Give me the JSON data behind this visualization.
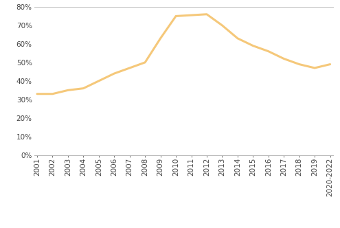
{
  "years": [
    "2001",
    "2002",
    "2003",
    "2004",
    "2005",
    "2006",
    "2007",
    "2008",
    "2009",
    "2010",
    "2011",
    "2012",
    "2013",
    "2014",
    "2015",
    "2016",
    "2017",
    "2018",
    "2019",
    "2020-2022"
  ],
  "values": [
    0.33,
    0.33,
    0.35,
    0.36,
    0.4,
    0.44,
    0.47,
    0.5,
    0.63,
    0.75,
    0.755,
    0.76,
    0.7,
    0.63,
    0.59,
    0.56,
    0.52,
    0.49,
    0.47,
    0.49
  ],
  "line_color": "#F5C87A",
  "line_width": 2.2,
  "ylim": [
    0.0,
    0.8
  ],
  "yticks": [
    0.0,
    0.1,
    0.2,
    0.3,
    0.4,
    0.5,
    0.6,
    0.7,
    0.8
  ],
  "background_color": "#ffffff",
  "spine_color": "#bbbbbb",
  "tick_label_fontsize": 7.5,
  "tick_label_color": "#444444",
  "tick_label_font": "DejaVu Sans"
}
